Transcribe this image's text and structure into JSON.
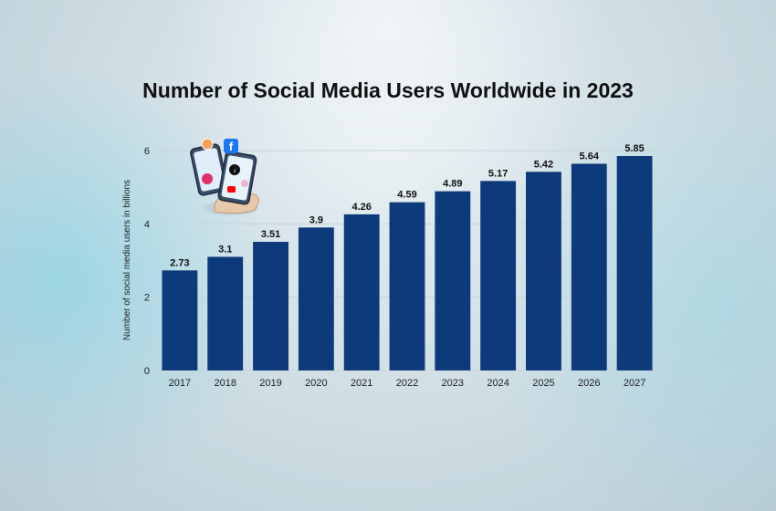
{
  "chart_data": {
    "type": "bar",
    "title": "Number of Social Media Users Worldwide in 2023",
    "xlabel": "",
    "ylabel": "Number of social media users in billions",
    "categories": [
      "2017",
      "2018",
      "2019",
      "2020",
      "2021",
      "2022",
      "2023",
      "2024",
      "2025",
      "2026",
      "2027"
    ],
    "values": [
      2.73,
      3.1,
      3.51,
      3.9,
      4.26,
      4.59,
      4.89,
      5.17,
      5.42,
      5.64,
      5.85
    ],
    "value_labels": [
      "2.73",
      "3.1",
      "3.51",
      "3.9",
      "4.26",
      "4.59",
      "4.89",
      "5.17",
      "5.42",
      "5.64",
      "5.85"
    ],
    "yticks": [
      0,
      2,
      4,
      6
    ],
    "ylim": [
      0,
      6
    ],
    "grid": true,
    "bar_color": "#0d3a7a"
  },
  "colors": {
    "title": "#111111",
    "axis_text": "#222222",
    "gridline": "#c9d3da"
  },
  "illustration": {
    "icon": "social-media-phones-hand-icon"
  }
}
